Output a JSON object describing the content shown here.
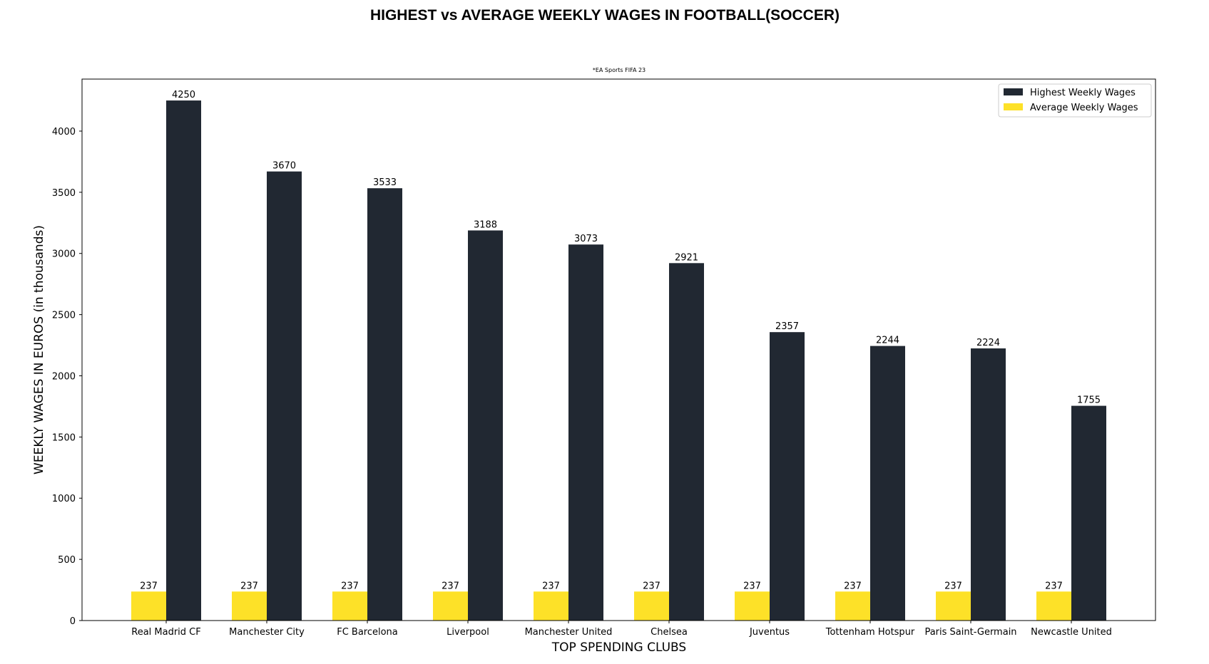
{
  "colors": {
    "highest": "#212832",
    "average": "#FDE128",
    "axis": "#000000",
    "legend_border": "#cccccc"
  },
  "chart_data": {
    "type": "bar",
    "title": "HIGHEST vs AVERAGE WEEKLY WAGES IN FOOTBALL(SOCCER)",
    "subtitle": "*EA Sports FIFA 23",
    "xlabel": "TOP SPENDING CLUBS",
    "ylabel": "WEEKLY WAGES IN EUROS (in thousands)",
    "ylim": [
      0,
      4425
    ],
    "yticks": [
      0,
      500,
      1000,
      1500,
      2000,
      2500,
      3000,
      3500,
      4000
    ],
    "grid": false,
    "legend_position": "top-right",
    "categories": [
      "Real Madrid CF",
      "Manchester City",
      "FC Barcelona",
      "Liverpool",
      "Manchester United",
      "Chelsea",
      "Juventus",
      "Tottenham Hotspur",
      "Paris Saint-Germain",
      "Newcastle United"
    ],
    "series": [
      {
        "name": "Highest Weekly Wages",
        "values": [
          4250,
          3670,
          3533,
          3188,
          3073,
          2921,
          2357,
          2244,
          2224,
          1755
        ]
      },
      {
        "name": "Average Weekly Wages",
        "values": [
          237,
          237,
          237,
          237,
          237,
          237,
          237,
          237,
          237,
          237
        ]
      }
    ]
  }
}
